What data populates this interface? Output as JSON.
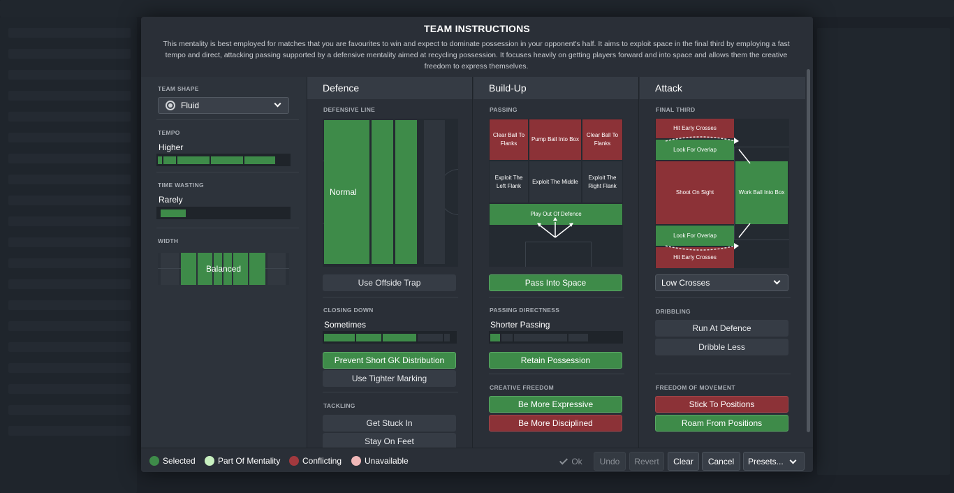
{
  "header": {
    "title": "TEAM INSTRUCTIONS",
    "description": "This mentality is best employed for matches that you are favourites to win and expect to dominate possession in your opponent's half. It aims to exploit space in the final third by employing a fast tempo and direct, attacking passing supported by a defensive mentality aimed at recycling possession. It focuses heavily on getting players forward and into space and allows them the creative freedom to express themselves."
  },
  "left": {
    "team_shape_label": "TEAM SHAPE",
    "team_shape_value": "Fluid",
    "tempo_label": "TEMPO",
    "tempo_value": "Higher",
    "tempo_level": 5,
    "time_wasting_label": "TIME WASTING",
    "time_wasting_value": "Rarely",
    "time_wasting_level": 1,
    "width_label": "WIDTH",
    "width_value": "Balanced"
  },
  "defence": {
    "title": "Defence",
    "defensive_line_label": "DEFENSIVE LINE",
    "defensive_line_value": "Normal",
    "offside_trap": "Use Offside Trap",
    "closing_down_label": "CLOSING DOWN",
    "closing_down_value": "Sometimes",
    "closing_down_level": 3,
    "gk_distribution": "Prevent Short GK Distribution",
    "tighter_marking": "Use Tighter Marking",
    "tackling_label": "TACKLING",
    "get_stuck_in": "Get Stuck In",
    "stay_on_feet": "Stay On Feet"
  },
  "buildup": {
    "title": "Build-Up",
    "passing_label": "PASSING",
    "cells": {
      "clear_left": "Clear Ball To Flanks",
      "pump": "Pump Ball Into Box",
      "clear_right": "Clear Ball To Flanks",
      "exploit_left": "Exploit The Left Flank",
      "exploit_middle": "Exploit The Middle",
      "exploit_right": "Exploit The Right Flank",
      "play_out": "Play Out Of Defence"
    },
    "pass_into_space": "Pass Into Space",
    "directness_label": "PASSING DIRECTNESS",
    "directness_value": "Shorter Passing",
    "directness_level": 1,
    "retain_possession": "Retain Possession",
    "creative_label": "CREATIVE FREEDOM",
    "be_more_expressive": "Be More Expressive",
    "be_more_disciplined": "Be More Disciplined"
  },
  "attack": {
    "title": "Attack",
    "final_third_label": "FINAL THIRD",
    "cells": {
      "hit_early_top": "Hit Early Crosses",
      "overlap_top": "Look For Overlap",
      "shoot": "Shoot On Sight",
      "work_ball": "Work Ball Into Box",
      "overlap_bottom": "Look For Overlap",
      "hit_early_bottom": "Hit Early Crosses"
    },
    "crosses_value": "Low Crosses",
    "dribbling_label": "DRIBBLING",
    "run_at_defence": "Run At Defence",
    "dribble_less": "Dribble Less",
    "freedom_label": "FREEDOM OF MOVEMENT",
    "stick_to_positions": "Stick To Positions",
    "roam_from_positions": "Roam From Positions"
  },
  "footer": {
    "legend": {
      "selected": "Selected",
      "part_of_mentality": "Part Of Mentality",
      "conflicting": "Conflicting",
      "unavailable": "Unavailable"
    },
    "ok": "Ok",
    "undo": "Undo",
    "revert": "Revert",
    "clear": "Clear",
    "cancel": "Cancel",
    "presets": "Presets..."
  },
  "colors": {
    "selected": "#3e8b49",
    "part_of_mentality": "#c8f0c0",
    "conflicting": "#8c3237",
    "unavailable": "#f0b8b8"
  }
}
